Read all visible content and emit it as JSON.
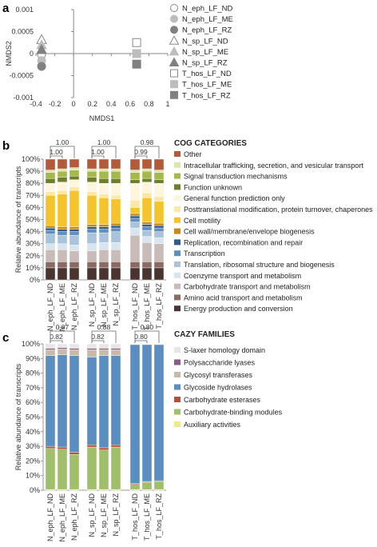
{
  "panels": {
    "a": "a",
    "b": "b",
    "c": "c"
  },
  "chart_data": [
    {
      "panel": "a",
      "type": "scatter",
      "xlabel": "NMDS1",
      "ylabel": "NMDS2",
      "xlim": [
        -0.4,
        1.0
      ],
      "ylim": [
        -0.001,
        0.001
      ],
      "xticks": [
        "-0.4",
        "-0.2",
        "0",
        "0.2",
        "0.4",
        "0.6",
        "0.8",
        "1"
      ],
      "yticks": [
        "0.001",
        "0.0005",
        "0",
        "-0.0005",
        "-0.001"
      ],
      "legend_position": "right",
      "series": [
        {
          "name": "N_eph_LF_ND",
          "marker": "circle",
          "fill": "#ffffff",
          "stroke": "#888888",
          "x": -0.34,
          "y": -2e-05
        },
        {
          "name": "N_eph_LF_ME",
          "marker": "circle",
          "fill": "#bdbdbd",
          "stroke": "#bdbdbd",
          "x": -0.34,
          "y": -0.00016
        },
        {
          "name": "N_eph_LF_RZ",
          "marker": "circle",
          "fill": "#808080",
          "stroke": "#808080",
          "x": -0.34,
          "y": -0.00029
        },
        {
          "name": "N_sp_LF_ND",
          "marker": "triangle",
          "fill": "#ffffff",
          "stroke": "#888888",
          "x": -0.34,
          "y": 0.00032
        },
        {
          "name": "N_sp_LF_ME",
          "marker": "triangle",
          "fill": "#bdbdbd",
          "stroke": "#bdbdbd",
          "x": -0.34,
          "y": 0.0002
        },
        {
          "name": "N_sp_LF_RZ",
          "marker": "triangle",
          "fill": "#808080",
          "stroke": "#808080",
          "x": -0.34,
          "y": 9e-05
        },
        {
          "name": "T_hos_LF_ND",
          "marker": "square",
          "fill": "#ffffff",
          "stroke": "#888888",
          "x": 0.67,
          "y": 0.00025
        },
        {
          "name": "T_hos_LF_ME",
          "marker": "square",
          "fill": "#bdbdbd",
          "stroke": "#bdbdbd",
          "x": 0.67,
          "y": 0.0
        },
        {
          "name": "T_hos_LF_RZ",
          "marker": "square",
          "fill": "#808080",
          "stroke": "#808080",
          "x": 0.67,
          "y": -0.00024
        }
      ]
    },
    {
      "panel": "b",
      "type": "bar",
      "stacked": true,
      "ylabel": "Relative abundance of transcripts",
      "ylim": [
        0,
        100
      ],
      "yticks": [
        "0%",
        "10%",
        "20%",
        "30%",
        "40%",
        "50%",
        "60%",
        "70%",
        "80%",
        "90%",
        "100%"
      ],
      "legend_title": "COG CATEGORIES",
      "categories": [
        "N_eph_LF_ND",
        "N_eph_LF_ME",
        "N_eph_LF_RZ",
        "N_sp_LF_ND",
        "N_sp_LF_ME",
        "N_sp_LF_RZ",
        "T_hos_LF_ND",
        "T_hos_LF_ME",
        "T_hos_LF_RZ"
      ],
      "brackets": [
        {
          "from": 0,
          "to": 1,
          "level": 0,
          "label": "1.00"
        },
        {
          "from": 0,
          "to": 2,
          "level": 1,
          "label": "1.00"
        },
        {
          "from": 3,
          "to": 4,
          "level": 0,
          "label": "1.00"
        },
        {
          "from": 3,
          "to": 5,
          "level": 1,
          "label": "1.00"
        },
        {
          "from": 6,
          "to": 7,
          "level": 0,
          "label": "0.99"
        },
        {
          "from": 6,
          "to": 8,
          "level": 1,
          "label": "0.98"
        }
      ],
      "series": [
        {
          "name": "Energy production and conversion",
          "color": "#4a3430",
          "values": [
            10,
            10,
            10,
            10,
            10,
            10,
            10,
            10,
            10
          ]
        },
        {
          "name": "Amino acid transport and metabolism",
          "color": "#8c6a64",
          "values": [
            5,
            5,
            5,
            5,
            5,
            5,
            5,
            5,
            5
          ]
        },
        {
          "name": "Carbohydrate transport and metabolism",
          "color": "#c9bcb8",
          "values": [
            10,
            10,
            9,
            9,
            10,
            10,
            22,
            16,
            15
          ]
        },
        {
          "name": "Coenzyme transport and metabolism",
          "color": "#d8e4ee",
          "values": [
            5,
            5,
            5,
            6,
            6,
            6,
            6,
            5,
            5
          ]
        },
        {
          "name": "Translation, ribosomal structure and biogenesis",
          "color": "#a9c3db",
          "values": [
            8,
            7,
            8,
            9,
            8,
            9,
            5,
            5,
            5
          ]
        },
        {
          "name": "Transcription",
          "color": "#5f8fbf",
          "values": [
            3,
            3,
            3,
            3,
            3,
            3,
            3,
            3,
            3
          ]
        },
        {
          "name": "Replication, recombination and repair",
          "color": "#2e5c8a",
          "values": [
            2,
            2,
            2,
            2,
            2,
            2,
            2,
            2,
            2
          ]
        },
        {
          "name": "Cell wall/membrane/envelope biogenesis",
          "color": "#c58a18",
          "values": [
            2,
            2,
            2,
            2,
            2,
            2,
            2,
            2,
            2
          ]
        },
        {
          "name": "Cell motility",
          "color": "#f5c42c",
          "values": [
            25,
            27,
            30,
            24,
            22,
            20,
            5,
            20,
            18
          ]
        },
        {
          "name": "Posttranslational modification, protein turnover, chaperones",
          "color": "#fbe7a6",
          "values": [
            3,
            3,
            3,
            3,
            3,
            3,
            6,
            4,
            4
          ]
        },
        {
          "name": "General function prediction only",
          "color": "#fdf6dc",
          "values": [
            7,
            7,
            6,
            8,
            9,
            10,
            14,
            9,
            11
          ]
        },
        {
          "name": "Function unknown",
          "color": "#6e7f2c",
          "values": [
            4,
            4,
            3,
            4,
            4,
            4,
            3,
            3,
            3
          ]
        },
        {
          "name": "Signal transduction mechanisms",
          "color": "#a5b94a",
          "values": [
            5,
            5,
            5,
            5,
            6,
            6,
            6,
            6,
            6
          ]
        },
        {
          "name": "Intracellular trafficking, secretion, and vesicular transport",
          "color": "#dbe6b0",
          "values": [
            2,
            2,
            2,
            2,
            2,
            2,
            2,
            2,
            2
          ]
        },
        {
          "name": "Other",
          "color": "#b25a3a",
          "values": [
            9,
            8,
            7,
            8,
            8,
            8,
            9,
            8,
            9
          ]
        }
      ]
    },
    {
      "panel": "c",
      "type": "bar",
      "stacked": true,
      "ylabel": "Relative abundance of transcripts",
      "ylim": [
        0,
        100
      ],
      "yticks": [
        "0%",
        "10%",
        "20%",
        "30%",
        "40%",
        "50%",
        "60%",
        "70%",
        "80%",
        "90%",
        "100%"
      ],
      "legend_title": "CAZY FAMILIES",
      "categories": [
        "N_eph_LF_ND",
        "N_eph_LF_ME",
        "N_eph_LF_RZ",
        "N_sp_LF_ND",
        "N_sp_LF_ME",
        "N_sp_LF_RZ",
        "T_hos_LF_ND",
        "T_hos_LF_ME",
        "T_hos_LF_RZ"
      ],
      "brackets": [
        {
          "from": 0,
          "to": 1,
          "level": 0,
          "label": "0.82"
        },
        {
          "from": 0,
          "to": 2,
          "level": 1,
          "label": "0.87"
        },
        {
          "from": 3,
          "to": 4,
          "level": 0,
          "label": "0.82"
        },
        {
          "from": 3,
          "to": 5,
          "level": 1,
          "label": "0.88"
        },
        {
          "from": 6,
          "to": 7,
          "level": 0,
          "label": "0.80"
        },
        {
          "from": 6,
          "to": 8,
          "level": 1,
          "label": "0.80"
        }
      ],
      "series": [
        {
          "name": "Auxiliary activities",
          "color": "#ecec84",
          "values": [
            0.5,
            0.5,
            0.5,
            0.5,
            0.5,
            0.5,
            0.5,
            0.5,
            0.5
          ]
        },
        {
          "name": "Carbohydrate-binding modules",
          "color": "#9fbf6a",
          "values": [
            28,
            27.5,
            24,
            29,
            27,
            29,
            3.5,
            5,
            5.5
          ]
        },
        {
          "name": "Carbohydrate esterases",
          "color": "#b5503a",
          "values": [
            1.5,
            1.5,
            1.5,
            1.5,
            1.5,
            1.5,
            0.5,
            0.5,
            0.5
          ]
        },
        {
          "name": "Glycoside hydrolases",
          "color": "#5a8ec0",
          "values": [
            62,
            63,
            66,
            60,
            63,
            61,
            95,
            93.5,
            93
          ]
        },
        {
          "name": "Glycosyl transferases",
          "color": "#c9b9a8",
          "values": [
            4,
            4,
            4,
            5,
            4,
            4,
            0.3,
            0.3,
            0.3
          ]
        },
        {
          "name": "Polysaccharide lyases",
          "color": "#8b5a86",
          "values": [
            1,
            1,
            1,
            1,
            1,
            1,
            0.1,
            0.1,
            0.1
          ]
        },
        {
          "name": "S-laxer homology domain",
          "color": "#e6e6e6",
          "values": [
            3,
            2.5,
            3,
            3,
            3,
            3,
            0.1,
            0.1,
            0.1
          ]
        }
      ]
    }
  ]
}
